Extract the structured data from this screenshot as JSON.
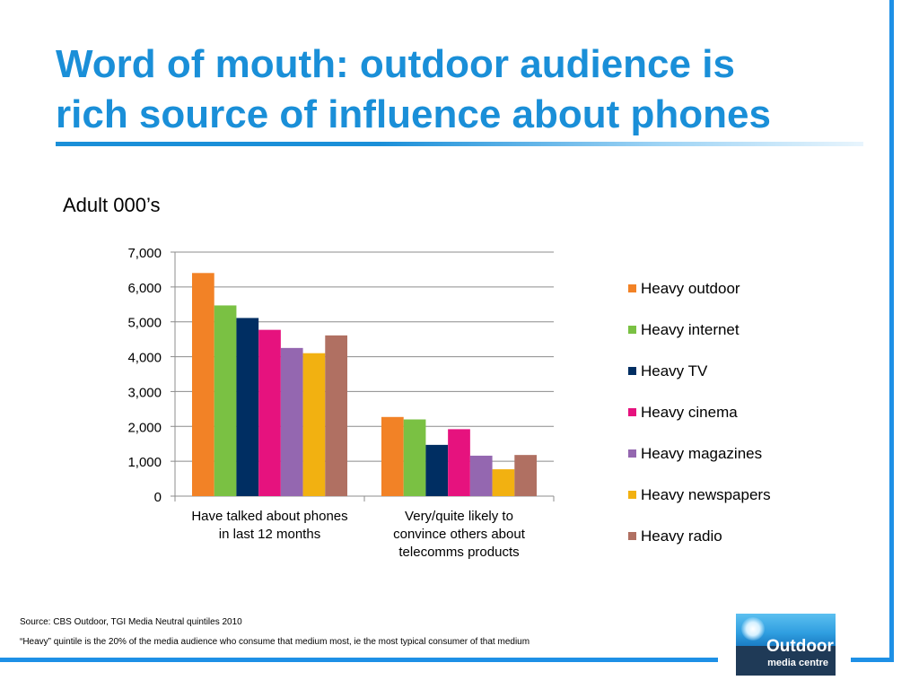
{
  "slide": {
    "title_line1": "Word of mouth: outdoor audience is",
    "title_line2": "rich source of influence about phones",
    "subtitle": "Adult 000’s",
    "source": "Source: CBS Outdoor, TGI Media Neutral quintiles 2010",
    "footnote": "“Heavy” quintile is the 20% of the media audience who consume that medium most, ie the most typical consumer of that medium",
    "logo_line1": "Outdoor",
    "logo_line2": "media centre"
  },
  "colors": {
    "title": "#1a8fd8",
    "border": "#1e90e6"
  },
  "chart_data": {
    "type": "bar",
    "categories": [
      [
        "Have talked about phones",
        "in last 12 months"
      ],
      [
        "Very/quite likely to",
        "convince others about",
        "telecomms products"
      ]
    ],
    "ylim": [
      0,
      7000
    ],
    "yticks": [
      0,
      1000,
      2000,
      3000,
      4000,
      5000,
      6000,
      7000
    ],
    "ytick_labels": [
      "0",
      "1,000",
      "2,000",
      "3,000",
      "4,000",
      "5,000",
      "6,000",
      "7,000"
    ],
    "grid": true,
    "legend_position": "right",
    "series": [
      {
        "name": "Heavy outdoor",
        "color": "#f28226",
        "values": [
          6400,
          2270
        ]
      },
      {
        "name": "Heavy internet",
        "color": "#7ac143",
        "values": [
          5470,
          2200
        ]
      },
      {
        "name": "Heavy TV",
        "color": "#002e62",
        "values": [
          5110,
          1470
        ]
      },
      {
        "name": "Heavy cinema",
        "color": "#e6127e",
        "values": [
          4770,
          1920
        ]
      },
      {
        "name": "Heavy magazines",
        "color": "#9467b0",
        "values": [
          4250,
          1160
        ]
      },
      {
        "name": "Heavy newspapers",
        "color": "#f2b111",
        "values": [
          4100,
          770
        ]
      },
      {
        "name": "Heavy radio",
        "color": "#b07062",
        "values": [
          4610,
          1180
        ]
      }
    ]
  }
}
